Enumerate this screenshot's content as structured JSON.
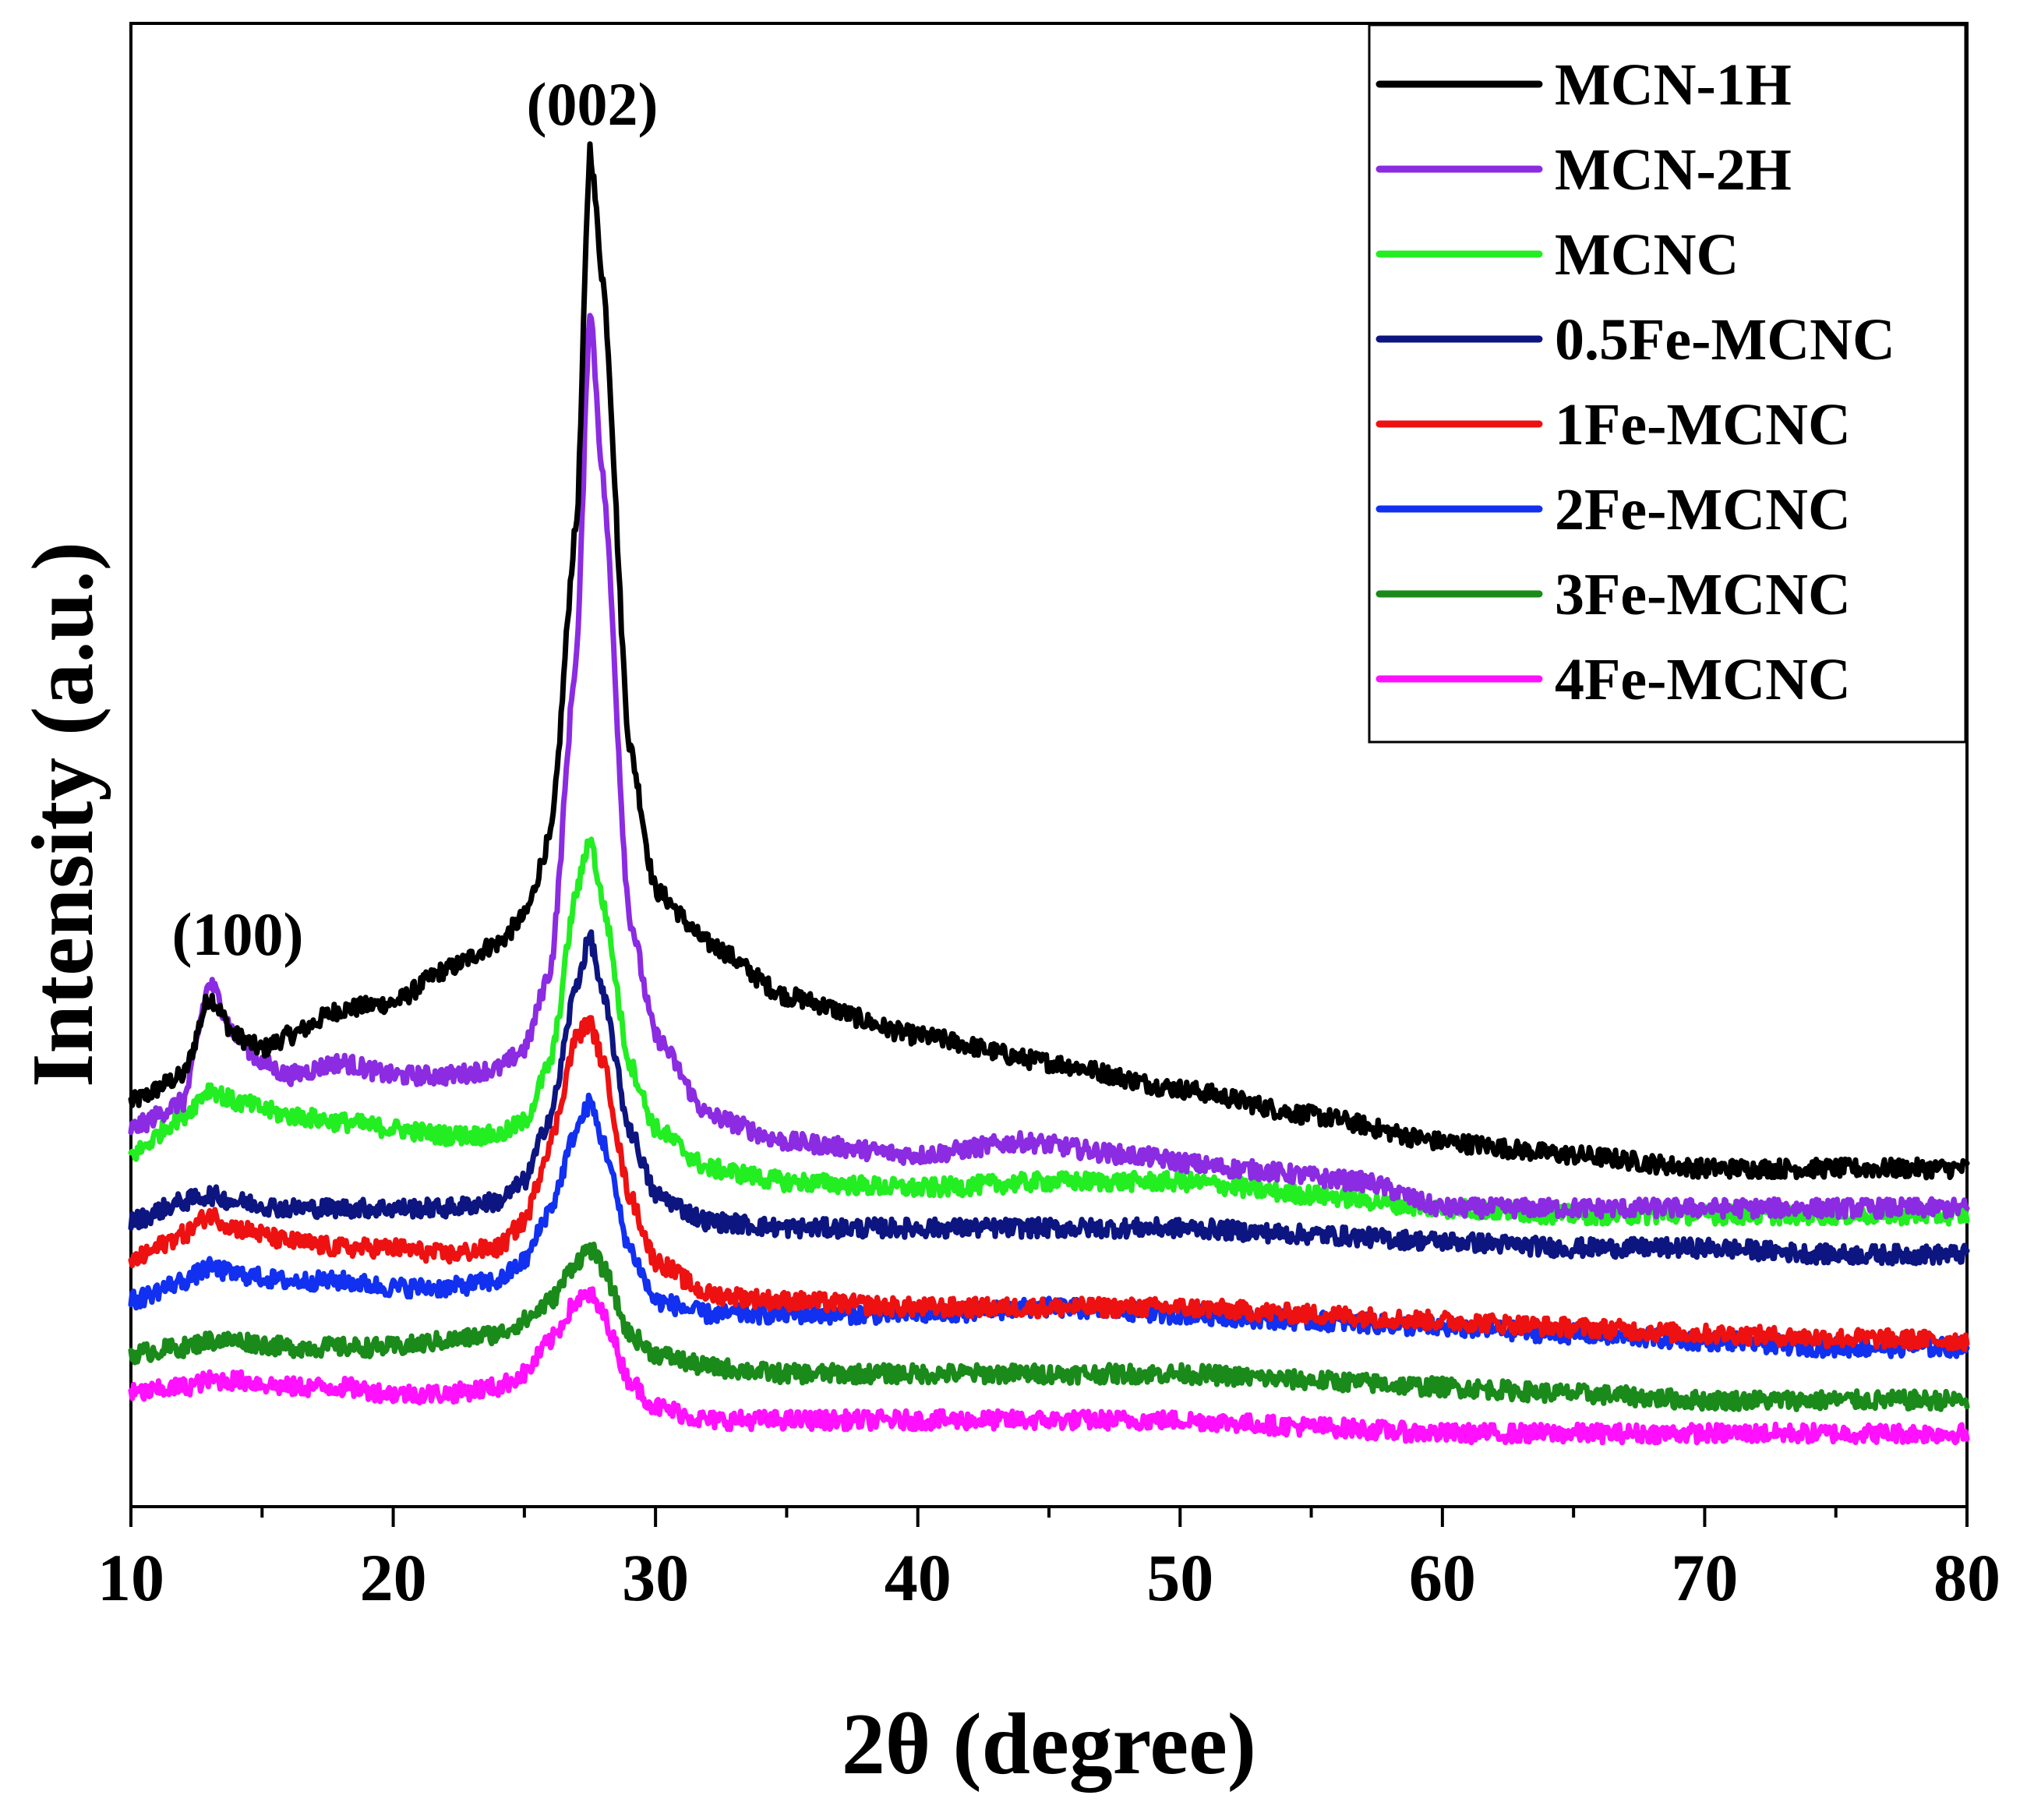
{
  "chart_data": {
    "type": "line",
    "title": "",
    "xlabel": "2θ (degree)",
    "ylabel": "Intensity (a.u.)",
    "xlim": [
      10,
      80
    ],
    "ylim": [
      0,
      100
    ],
    "x_ticks": [
      10,
      20,
      30,
      40,
      50,
      60,
      70,
      80
    ],
    "y_ticks_shown": false,
    "grid": false,
    "legend_position": "top-right",
    "annotations": [
      {
        "text": "(002)",
        "x": 27.5,
        "y": 98
      },
      {
        "text": "(100)",
        "x": 13.0,
        "y": 40
      }
    ],
    "series": [
      {
        "name": "MCN-1H",
        "color": "#000000",
        "x": [
          10,
          12,
          13,
          14,
          15,
          16,
          18,
          20,
          22,
          24,
          25,
          26,
          27,
          27.5,
          28,
          29,
          30,
          32,
          35,
          40,
          45,
          50,
          55,
          60,
          65,
          70,
          75,
          80
        ],
        "y": [
          28,
          30,
          36,
          33,
          32,
          33,
          35,
          35.5,
          38,
          40,
          42,
          48,
          72,
          100,
          90,
          55,
          44,
          40,
          36,
          33,
          31,
          29,
          27,
          25,
          24,
          23,
          23,
          23
        ]
      },
      {
        "name": "MCN-2H",
        "color": "#8b2be2",
        "x": [
          10,
          12,
          13,
          14,
          15,
          16,
          18,
          20,
          22,
          24,
          25,
          26,
          27,
          27.5,
          28,
          29,
          30,
          32,
          35,
          40,
          44,
          48,
          52,
          57,
          60,
          65,
          70,
          75,
          80
        ],
        "y": [
          26,
          28,
          37,
          33,
          31,
          30,
          31,
          30,
          30,
          30.5,
          32,
          38,
          62,
          88,
          75,
          42,
          33,
          27,
          25,
          24,
          25,
          24,
          23,
          22,
          20,
          20,
          20,
          20,
          20
        ]
      },
      {
        "name": "MCNC",
        "color": "#22ee22",
        "x": [
          10,
          12,
          13,
          14,
          16,
          18,
          20,
          22,
          24,
          25,
          26,
          27,
          27.5,
          28,
          29,
          30,
          32,
          35,
          40,
          45,
          50,
          55,
          60,
          65,
          70,
          75,
          80
        ],
        "y": [
          24,
          27,
          29,
          28,
          27,
          26.5,
          26,
          25.5,
          25.5,
          26.5,
          31,
          44,
          48,
          43,
          31,
          26,
          23,
          22,
          21.5,
          22,
          22,
          21,
          20,
          19.5,
          19.5,
          19.5,
          19.5
        ]
      },
      {
        "name": "0.5Fe-MCNC",
        "color": "#0d1580",
        "x": [
          10,
          12,
          13,
          14,
          16,
          18,
          20,
          22,
          24,
          25,
          26,
          27,
          27.5,
          28,
          29,
          30,
          32,
          35,
          40,
          45,
          50,
          55,
          60,
          65,
          70,
          75,
          80
        ],
        "y": [
          19,
          20.5,
          21,
          20.5,
          20,
          20,
          20,
          20,
          20.5,
          22,
          27,
          37,
          40.5,
          36,
          26,
          21,
          19,
          18.5,
          18.5,
          18.5,
          18.5,
          18,
          17.5,
          17,
          17,
          16.5,
          16.5
        ]
      },
      {
        "name": "1Fe-MCNC",
        "color": "#ee1111",
        "x": [
          10,
          12,
          13,
          14,
          16,
          18,
          20,
          22,
          24,
          25,
          26,
          27,
          27.5,
          28,
          29,
          30,
          32,
          35,
          40,
          45,
          50,
          55,
          60,
          65,
          70,
          75,
          80
        ],
        "y": [
          16,
          18,
          19.5,
          18.5,
          17.5,
          17,
          17,
          16.5,
          17,
          19,
          25,
          33,
          34,
          31,
          21,
          16,
          13.5,
          13,
          12.5,
          12.5,
          12.5,
          12,
          11.5,
          11,
          10.5,
          10.2,
          10
        ]
      },
      {
        "name": "2Fe-MCNC",
        "color": "#1130f0",
        "x": [
          10,
          12,
          13,
          14,
          16,
          18,
          20,
          22,
          24,
          25,
          26,
          27,
          27.5,
          28,
          29,
          30,
          32,
          35,
          40,
          45,
          50,
          55,
          60,
          65,
          70,
          75,
          80
        ],
        "y": [
          13,
          14.5,
          15.5,
          15,
          14.5,
          14.5,
          14,
          14,
          14.5,
          16,
          20,
          26,
          28,
          25,
          17,
          13,
          12,
          12,
          12,
          12.5,
          12,
          11.5,
          11,
          10.5,
          10,
          9.5,
          9.5
        ]
      },
      {
        "name": "3Fe-MCNC",
        "color": "#1a8a1a",
        "x": [
          10,
          12,
          13,
          14,
          16,
          18,
          20,
          22,
          24,
          25,
          26,
          27,
          27.5,
          28,
          29,
          30,
          32,
          35,
          40,
          45,
          50,
          55,
          60,
          65,
          70,
          75,
          80
        ],
        "y": [
          9,
          9.5,
          10,
          10,
          9.5,
          9.5,
          9.5,
          10,
          10.5,
          11.5,
          13,
          16,
          17,
          15.5,
          10.5,
          9,
          8,
          7.5,
          7.5,
          7.5,
          7.5,
          7,
          6.5,
          6,
          5.5,
          5.5,
          5.5
        ]
      },
      {
        "name": "4Fe-MCNC",
        "color": "#ff10ff",
        "x": [
          10,
          12,
          13,
          14,
          16,
          18,
          20,
          22,
          24,
          25,
          26,
          27,
          27.5,
          28,
          29,
          30,
          32,
          35,
          40,
          45,
          50,
          55,
          60,
          65,
          70,
          75,
          80
        ],
        "y": [
          6,
          6.5,
          7,
          7,
          6.5,
          6.5,
          6,
          6,
          6.5,
          7.5,
          10,
          13,
          13.5,
          12,
          7,
          5,
          4,
          4,
          4,
          4,
          4,
          3.5,
          3,
          3,
          3,
          3,
          3
        ]
      }
    ]
  }
}
